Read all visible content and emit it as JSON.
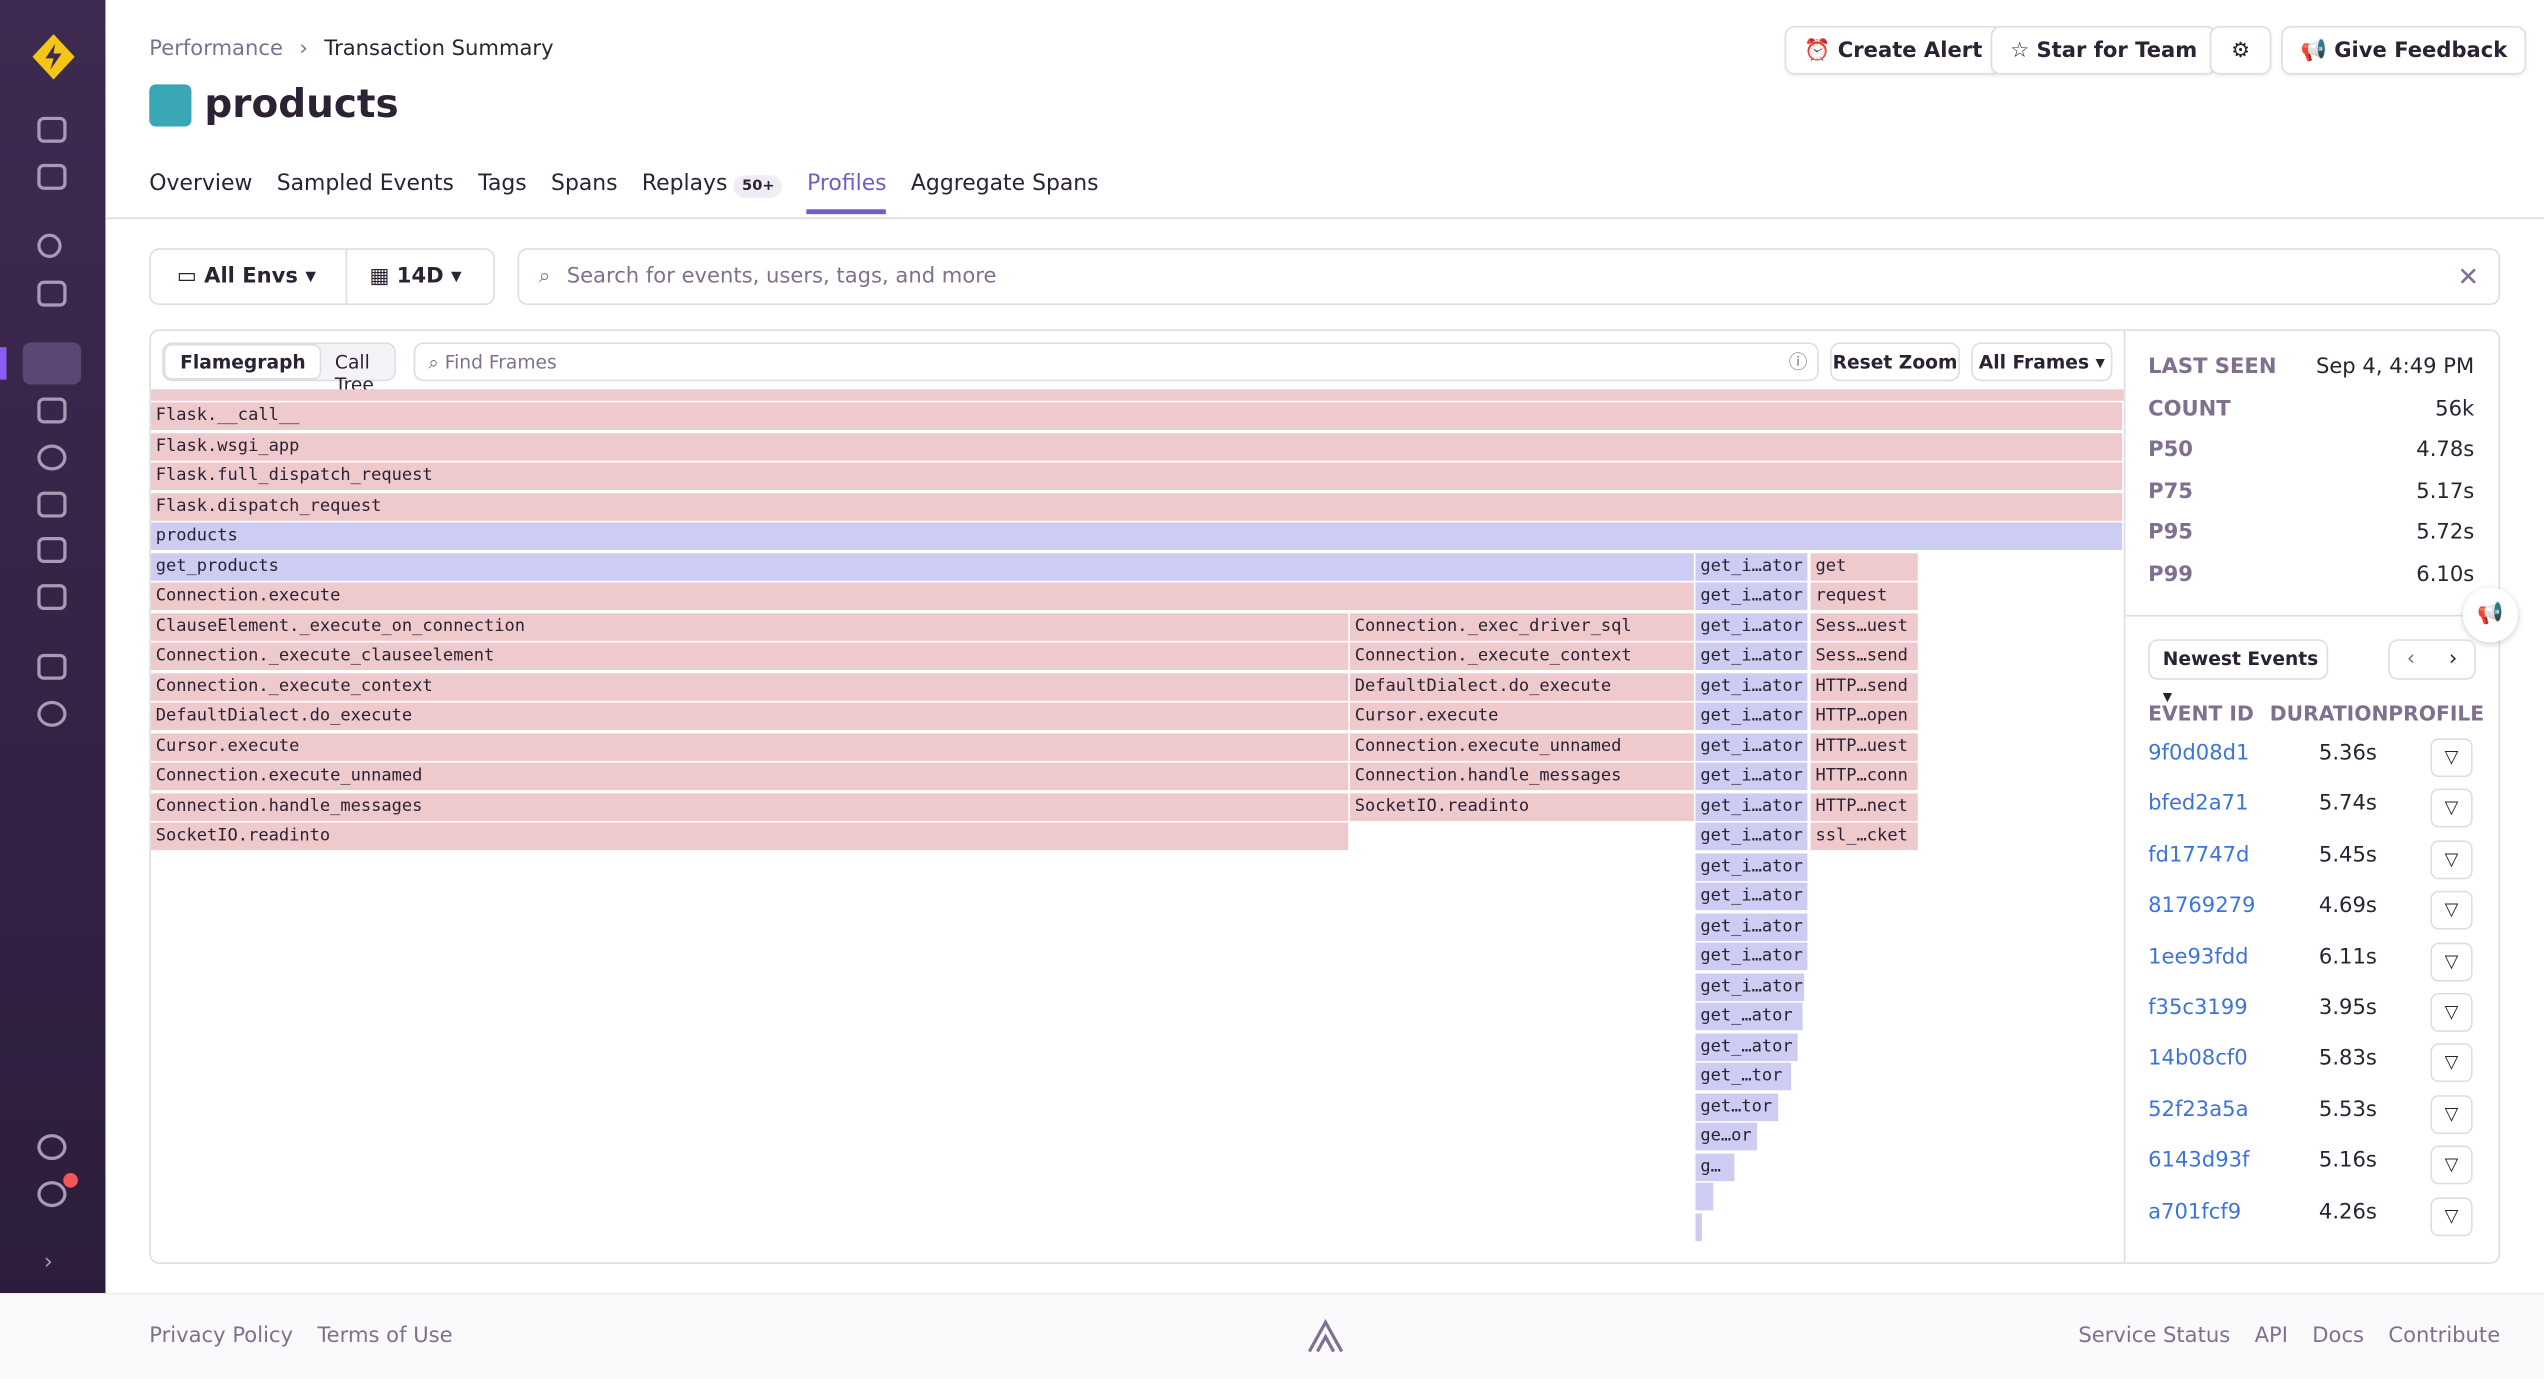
{
  "breadcrumbs": [
    "Performance",
    "Transaction Summary"
  ],
  "title": "products",
  "actions": [
    "Create Alert",
    "Star for Team",
    "Give Feedback"
  ],
  "tabs": [
    "Overview",
    "Sampled Events",
    "Tags",
    "Spans",
    "Replays",
    "Profiles",
    "Aggregate Spans"
  ],
  "replays_badge": "50+",
  "filters": {
    "env": "All Envs",
    "period": "14D",
    "search_placeholder": "Search for events, users, tags, and more"
  },
  "flamegraph": {
    "views": [
      "Flamegraph",
      "Call Tree"
    ],
    "find_placeholder": "Find Frames",
    "reset": "Reset Zoom",
    "frames_filter": "All Frames",
    "rows": [
      [
        "Flask.__call__"
      ],
      [
        "Flask.wsgi_app"
      ],
      [
        "Flask.full_dispatch_request"
      ],
      [
        "Flask.dispatch_request"
      ],
      [
        "products"
      ],
      [
        "get_products",
        "get_i…ator",
        "get"
      ],
      [
        "Connection.execute",
        "get_i…ator",
        "request"
      ],
      [
        "ClauseElement._execute_on_connection",
        "Connection._exec_driver_sql",
        "get_i…ator",
        "Sess…uest"
      ],
      [
        "Connection._execute_clauseelement",
        "Connection._execute_context",
        "get_i…ator",
        "Sess…send"
      ],
      [
        "Connection._execute_context",
        "DefaultDialect.do_execute",
        "get_i…ator",
        "HTTP…send"
      ],
      [
        "DefaultDialect.do_execute",
        "Cursor.execute",
        "get_i…ator",
        "HTTP…open"
      ],
      [
        "Cursor.execute",
        "Connection.execute_unnamed",
        "get_i…ator",
        "HTTP…uest"
      ],
      [
        "Connection.execute_unnamed",
        "Connection.handle_messages",
        "get_i…ator",
        "HTTP…conn"
      ],
      [
        "Connection.handle_messages",
        "SocketIO.readinto",
        "get_i…ator",
        "HTTP…nect"
      ],
      [
        "SocketIO.readinto",
        "get_i…ator",
        "ssl_…cket"
      ],
      [
        "get_i…ator"
      ],
      [
        "get_i…ator"
      ],
      [
        "get_i…ator"
      ],
      [
        "get_i…ator"
      ],
      [
        "get_i…ator"
      ],
      [
        "get_…ator"
      ],
      [
        "get_…ator"
      ],
      [
        "get_…tor"
      ],
      [
        "get…tor"
      ],
      [
        "ge…or"
      ],
      [
        "g…"
      ]
    ]
  },
  "summary": [
    {
      "label": "LAST SEEN",
      "value": "Sep 4, 4:49 PM"
    },
    {
      "label": "COUNT",
      "value": "56k"
    },
    {
      "label": "P50",
      "value": "4.78s"
    },
    {
      "label": "P75",
      "value": "5.17s"
    },
    {
      "label": "P95",
      "value": "5.72s"
    },
    {
      "label": "P99",
      "value": "6.10s"
    }
  ],
  "events": {
    "sort": "Newest Events",
    "columns": [
      "EVENT ID",
      "DURATION",
      "PROFILE"
    ],
    "rows": [
      [
        "9f0d08d1",
        "5.36s"
      ],
      [
        "bfed2a71",
        "5.74s"
      ],
      [
        "fd17747d",
        "5.45s"
      ],
      [
        "81769279",
        "4.69s"
      ],
      [
        "1ee93fdd",
        "6.11s"
      ],
      [
        "f35c3199",
        "3.95s"
      ],
      [
        "14b08cf0",
        "5.83s"
      ],
      [
        "52f23a5a",
        "5.53s"
      ],
      [
        "6143d93f",
        "5.16s"
      ],
      [
        "a701fcf9",
        "4.26s"
      ]
    ]
  },
  "footer": {
    "left": [
      "Privacy Policy",
      "Terms of Use"
    ],
    "right": [
      "Service Status",
      "API",
      "Docs",
      "Contribute"
    ]
  }
}
